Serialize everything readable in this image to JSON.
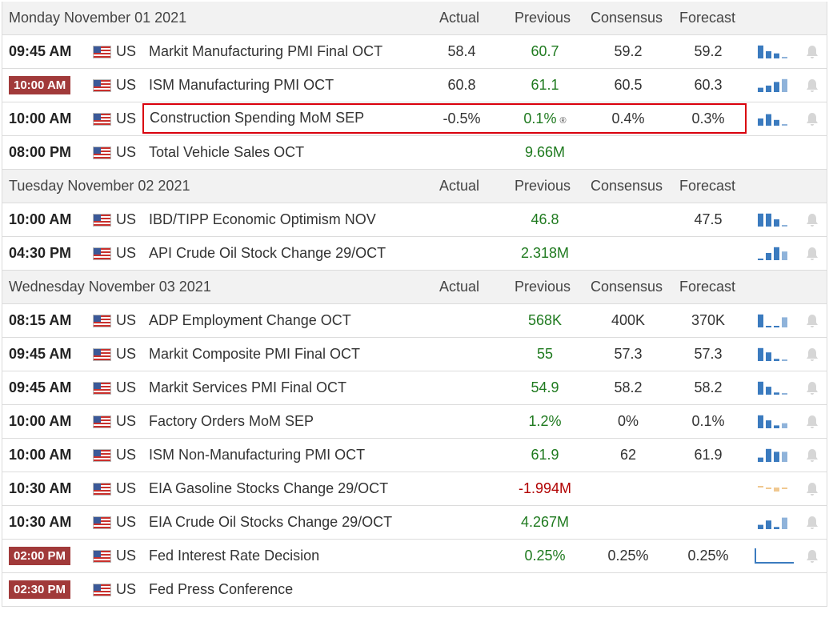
{
  "days": [
    {
      "date": "Monday November 01 2021",
      "events": [
        {
          "time": "09:45 AM",
          "badge": false,
          "country": "US",
          "event": "Markit Manufacturing PMI Final OCT",
          "actual": "58.4",
          "previous": "60.7",
          "prev_dir": "up",
          "consensus": "59.2",
          "forecast": "59.2",
          "spark": [
            0.9,
            0.5,
            0.35,
            0.1
          ],
          "spark_color": "#3b7bbf",
          "bell": true
        },
        {
          "time": "10:00 AM",
          "badge": true,
          "country": "US",
          "event": "ISM Manufacturing PMI OCT",
          "actual": "60.8",
          "previous": "61.1",
          "prev_dir": "up",
          "consensus": "60.5",
          "forecast": "60.3",
          "spark": [
            0.3,
            0.45,
            0.7,
            0.9
          ],
          "spark_color": "#3b7bbf",
          "bell": true
        },
        {
          "time": "10:00 AM",
          "badge": false,
          "country": "US",
          "event": "Construction Spending MoM SEP",
          "actual": "-0.5%",
          "previous": "0.1%",
          "prev_dir": "up",
          "revised": "®",
          "consensus": "0.4%",
          "forecast": "0.3%",
          "spark": [
            0.5,
            0.8,
            0.4,
            0.1
          ],
          "spark_color": "#3b7bbf",
          "bell": true,
          "highlight": true
        },
        {
          "time": "08:00 PM",
          "badge": false,
          "country": "US",
          "event": "Total Vehicle Sales OCT",
          "actual": "",
          "previous": "9.66M",
          "prev_dir": "up",
          "consensus": "",
          "forecast": "",
          "spark": null,
          "bell": false
        }
      ]
    },
    {
      "date": "Tuesday November 02 2021",
      "events": [
        {
          "time": "10:00 AM",
          "badge": false,
          "country": "US",
          "event": "IBD/TIPP Economic Optimism NOV",
          "actual": "",
          "previous": "46.8",
          "prev_dir": "up",
          "consensus": "",
          "forecast": "47.5",
          "spark": [
            0.9,
            0.9,
            0.5,
            0.1
          ],
          "spark_color": "#3b7bbf",
          "bell": true
        },
        {
          "time": "04:30 PM",
          "badge": false,
          "country": "US",
          "event": "API Crude Oil Stock Change 29/OCT",
          "actual": "",
          "previous": "2.318M",
          "prev_dir": "up",
          "consensus": "",
          "forecast": "",
          "spark": [
            0.1,
            0.5,
            0.9,
            0.6
          ],
          "spark_color": "#3b7bbf",
          "bell": true
        }
      ]
    },
    {
      "date": "Wednesday November 03 2021",
      "events": [
        {
          "time": "08:15 AM",
          "badge": false,
          "country": "US",
          "event": "ADP Employment Change OCT",
          "actual": "",
          "previous": "568K",
          "prev_dir": "up",
          "consensus": "400K",
          "forecast": "370K",
          "spark": [
            0.9,
            0.1,
            0.1,
            0.7
          ],
          "spark_color": "#3b7bbf",
          "bell": true
        },
        {
          "time": "09:45 AM",
          "badge": false,
          "country": "US",
          "event": "Markit Composite PMI Final OCT",
          "actual": "",
          "previous": "55",
          "prev_dir": "up",
          "consensus": "57.3",
          "forecast": "57.3",
          "spark": [
            0.9,
            0.6,
            0.15,
            0.1
          ],
          "spark_color": "#3b7bbf",
          "bell": true
        },
        {
          "time": "09:45 AM",
          "badge": false,
          "country": "US",
          "event": "Markit Services PMI Final OCT",
          "actual": "",
          "previous": "54.9",
          "prev_dir": "up",
          "consensus": "58.2",
          "forecast": "58.2",
          "spark": [
            0.9,
            0.55,
            0.15,
            0.1
          ],
          "spark_color": "#3b7bbf",
          "bell": true
        },
        {
          "time": "10:00 AM",
          "badge": false,
          "country": "US",
          "event": "Factory Orders MoM SEP",
          "actual": "",
          "previous": "1.2%",
          "prev_dir": "up",
          "consensus": "0%",
          "forecast": "0.1%",
          "spark": [
            0.9,
            0.55,
            0.2,
            0.35
          ],
          "spark_color": "#3b7bbf",
          "bell": true
        },
        {
          "time": "10:00 AM",
          "badge": false,
          "country": "US",
          "event": "ISM Non-Manufacturing PMI OCT",
          "actual": "",
          "previous": "61.9",
          "prev_dir": "up",
          "consensus": "62",
          "forecast": "61.9",
          "spark": [
            0.3,
            0.9,
            0.7,
            0.7
          ],
          "spark_color": "#3b7bbf",
          "bell": true
        },
        {
          "time": "10:30 AM",
          "badge": false,
          "country": "US",
          "event": "EIA Gasoline Stocks Change 29/OCT",
          "actual": "",
          "previous": "-1.994M",
          "prev_dir": "down",
          "consensus": "",
          "forecast": "",
          "spark": [
            0.15,
            -0.15,
            -0.5,
            -0.2
          ],
          "spark_color": "#f0c890",
          "bell": true
        },
        {
          "time": "10:30 AM",
          "badge": false,
          "country": "US",
          "event": "EIA Crude Oil Stocks Change 29/OCT",
          "actual": "",
          "previous": "4.267M",
          "prev_dir": "up",
          "consensus": "",
          "forecast": "",
          "spark": [
            0.3,
            0.6,
            0.15,
            0.8
          ],
          "spark_color": "#3b7bbf",
          "bell": true
        },
        {
          "time": "02:00 PM",
          "badge": true,
          "country": "US",
          "event": "Fed Interest Rate Decision",
          "actual": "",
          "previous": "0.25%",
          "prev_dir": "up",
          "consensus": "0.25%",
          "forecast": "0.25%",
          "spark": "line",
          "spark_color": "#3b7bbf",
          "bell": true
        },
        {
          "time": "02:30 PM",
          "badge": true,
          "country": "US",
          "event": "Fed Press Conference",
          "actual": "",
          "previous": "",
          "prev_dir": "up",
          "consensus": "",
          "forecast": "",
          "spark": null,
          "bell": false
        }
      ]
    }
  ],
  "headers": {
    "actual": "Actual",
    "previous": "Previous",
    "consensus": "Consensus",
    "forecast": "Forecast"
  }
}
